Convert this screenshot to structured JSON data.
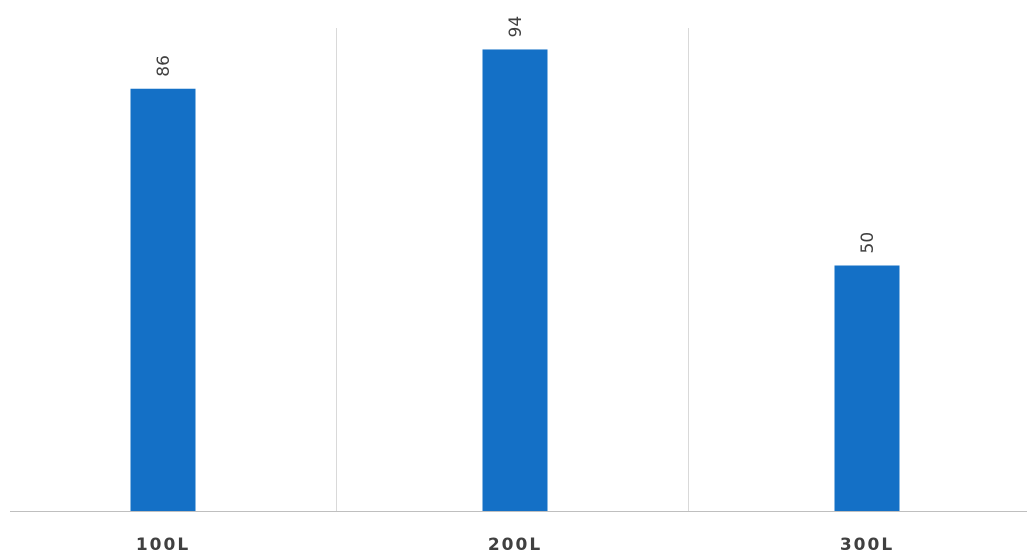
{
  "chart_data": {
    "type": "bar",
    "categories": [
      "100L",
      "200L",
      "300L"
    ],
    "values": [
      86,
      94,
      50
    ],
    "data_labels": [
      "86",
      "94",
      "50"
    ],
    "ylim": [
      0,
      100
    ],
    "grid": "vertical category separators",
    "legend": "none",
    "bar_color": "#1470C6",
    "grid_color": "#D9D9D9",
    "axis_color": "#BFBFBF",
    "label_color": "#404040"
  }
}
